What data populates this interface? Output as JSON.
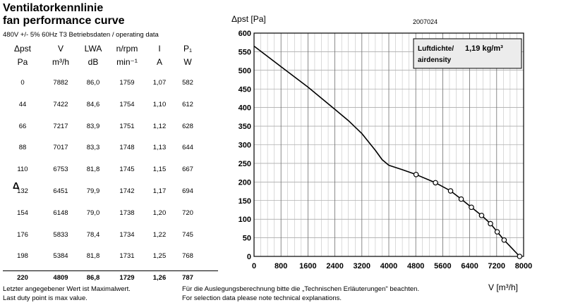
{
  "header": {
    "title_de": "Ventilatorkennlinie",
    "title_en": "fan performance curve",
    "subtitle": "480V +/- 5% 60Hz T3 Betriebsdaten / operating data",
    "doc_id": "2007024"
  },
  "table": {
    "columns": [
      {
        "name": "Δpst",
        "unit": "Pa"
      },
      {
        "name": "V",
        "unit": "m³/h"
      },
      {
        "name": "LWA",
        "unit": "dB"
      },
      {
        "name": "n/rpm",
        "unit": "min⁻¹"
      },
      {
        "name": "I",
        "unit": "A"
      },
      {
        "name": "P₁",
        "unit": "W"
      }
    ],
    "rows": [
      [
        "0",
        "7882",
        "86,0",
        "1759",
        "1,07",
        "582"
      ],
      [
        "44",
        "7422",
        "84,6",
        "1754",
        "1,10",
        "612"
      ],
      [
        "66",
        "7217",
        "83,9",
        "1751",
        "1,12",
        "628"
      ],
      [
        "88",
        "7017",
        "83,3",
        "1748",
        "1,13",
        "644"
      ],
      [
        "110",
        "6753",
        "81,8",
        "1745",
        "1,15",
        "667"
      ],
      [
        "132",
        "6451",
        "79,9",
        "1742",
        "1,17",
        "694"
      ],
      [
        "154",
        "6148",
        "79,0",
        "1738",
        "1,20",
        "720"
      ],
      [
        "176",
        "5833",
        "78,4",
        "1734",
        "1,22",
        "745"
      ],
      [
        "198",
        "5384",
        "81,8",
        "1731",
        "1,25",
        "768"
      ],
      [
        "220",
        "4809",
        "86,8",
        "1729",
        "1,26",
        "787"
      ]
    ],
    "delta_marker": "Δ"
  },
  "footer": {
    "de_left": "Letzter angegebener Wert ist Maximalwert.",
    "en_left": "Last duty point is max value.",
    "de_right": "Für die Auslegungsberechnung bitte die „Technischen Erläuterungen\" beachten.",
    "en_right": "For selection data please note technical explanations."
  },
  "chart_data": {
    "type": "line",
    "ylabel": "Δpst [Pa]",
    "xlabel": "V [m³/h]",
    "xlim": [
      0,
      8000
    ],
    "ylim": [
      0,
      600
    ],
    "x_ticks": [
      0,
      800,
      1600,
      2400,
      3200,
      4000,
      4800,
      5600,
      6400,
      7200,
      8000
    ],
    "y_ticks": [
      0,
      50,
      100,
      150,
      200,
      250,
      300,
      350,
      400,
      450,
      500,
      550,
      600
    ],
    "grid": true,
    "annotation": {
      "line1": "Luftdichte/",
      "value": "1,19 kg/m³",
      "line2": "airdensity"
    },
    "series": [
      {
        "curve": [
          [
            0,
            565
          ],
          [
            800,
            510
          ],
          [
            1600,
            455
          ],
          [
            2400,
            395
          ],
          [
            2800,
            365
          ],
          [
            3200,
            330
          ],
          [
            3600,
            285
          ],
          [
            3800,
            260
          ],
          [
            4000,
            245
          ],
          [
            4400,
            233
          ],
          [
            4809,
            220
          ],
          [
            5384,
            198
          ],
          [
            5833,
            176
          ],
          [
            6148,
            154
          ],
          [
            6451,
            132
          ],
          [
            6753,
            110
          ],
          [
            7017,
            88
          ],
          [
            7217,
            66
          ],
          [
            7422,
            44
          ],
          [
            7882,
            0
          ]
        ],
        "markers": [
          [
            4809,
            220
          ],
          [
            5384,
            198
          ],
          [
            5833,
            176
          ],
          [
            6148,
            154
          ],
          [
            6451,
            132
          ],
          [
            6753,
            110
          ],
          [
            7017,
            88
          ],
          [
            7217,
            66
          ],
          [
            7422,
            44
          ],
          [
            7882,
            0
          ]
        ]
      }
    ]
  }
}
